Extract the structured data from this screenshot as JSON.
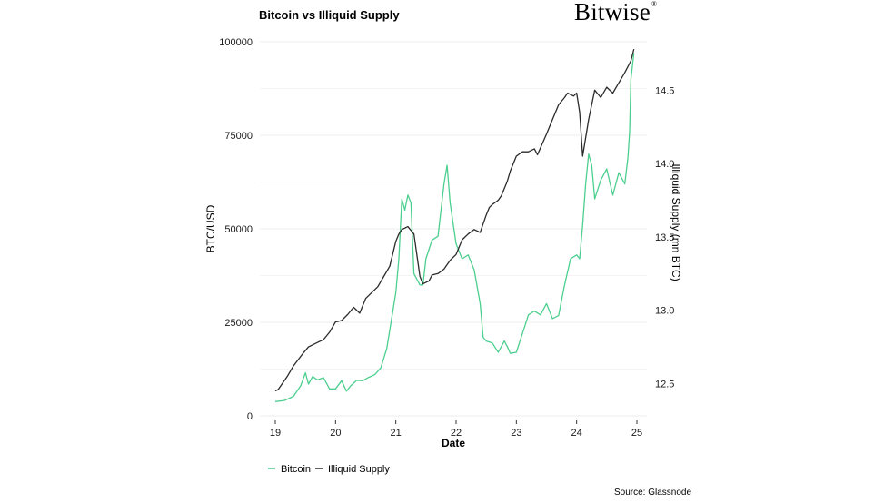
{
  "title": "Bitcoin vs Illiquid Supply",
  "brand": {
    "name": "Bitwise",
    "mark": "®"
  },
  "source": "Source: Glassnode",
  "chart_data": {
    "type": "line",
    "title": "Bitcoin vs Illiquid Supply",
    "xlabel": "Date",
    "ylabel_left": "BTC/USD",
    "ylabel_right": "Illiquid Supply (mn BTC)",
    "xlim": [
      19,
      25
    ],
    "x_ticks": [
      "19",
      "20",
      "21",
      "22",
      "23",
      "24",
      "25"
    ],
    "ylim_left": [
      0,
      100000
    ],
    "y_ticks_left": [
      "0",
      "25000",
      "50000",
      "75000",
      "100000"
    ],
    "ylim_right": [
      12.28,
      14.83
    ],
    "y_ticks_right": [
      "12.5",
      "13.0",
      "13.5",
      "14.0",
      "14.5"
    ],
    "grid": true,
    "legend_position": "bottom-left",
    "colors": {
      "bitcoin": "#4ccf8f",
      "illiquid": "#2b2b2b",
      "grid": "#ececec"
    },
    "series": [
      {
        "name": "Bitcoin",
        "axis": "left",
        "x": [
          19.0,
          19.15,
          19.3,
          19.42,
          19.5,
          19.55,
          19.62,
          19.7,
          19.8,
          19.9,
          20.0,
          20.1,
          20.18,
          20.25,
          20.35,
          20.45,
          20.55,
          20.65,
          20.75,
          20.85,
          20.92,
          21.0,
          21.05,
          21.1,
          21.15,
          21.2,
          21.25,
          21.3,
          21.4,
          21.45,
          21.5,
          21.6,
          21.7,
          21.8,
          21.85,
          21.9,
          22.0,
          22.1,
          22.2,
          22.3,
          22.4,
          22.45,
          22.5,
          22.6,
          22.7,
          22.8,
          22.85,
          22.9,
          23.0,
          23.1,
          23.2,
          23.3,
          23.4,
          23.5,
          23.6,
          23.7,
          23.8,
          23.9,
          24.0,
          24.05,
          24.1,
          24.15,
          24.2,
          24.25,
          24.3,
          24.4,
          24.5,
          24.6,
          24.7,
          24.8,
          24.85,
          24.88,
          24.9,
          24.95
        ],
        "values": [
          3800,
          4100,
          5200,
          8000,
          11500,
          8500,
          10500,
          9600,
          10200,
          7200,
          7200,
          9400,
          6600,
          8000,
          9500,
          9400,
          10300,
          11000,
          12800,
          18000,
          25000,
          33000,
          42000,
          58000,
          55000,
          59000,
          57000,
          38000,
          35000,
          35000,
          42000,
          47000,
          48000,
          62000,
          67000,
          57000,
          46000,
          42000,
          43000,
          39000,
          30000,
          21000,
          20000,
          19500,
          17000,
          20000,
          18500,
          16700,
          17000,
          22000,
          27000,
          28000,
          27000,
          30000,
          26000,
          26800,
          35000,
          42000,
          43000,
          42000,
          51000,
          62000,
          70000,
          67000,
          58000,
          63000,
          66000,
          59000,
          65000,
          62000,
          69000,
          76000,
          90000,
          97000
        ]
      },
      {
        "name": "Illiquid Supply",
        "axis": "right",
        "x": [
          19.0,
          19.05,
          19.2,
          19.3,
          19.45,
          19.55,
          19.7,
          19.8,
          19.9,
          20.0,
          20.1,
          20.2,
          20.3,
          20.4,
          20.5,
          20.6,
          20.7,
          20.8,
          20.9,
          21.0,
          21.05,
          21.1,
          21.2,
          21.3,
          21.4,
          21.45,
          21.55,
          21.6,
          21.7,
          21.8,
          21.9,
          22.0,
          22.1,
          22.2,
          22.3,
          22.4,
          22.5,
          22.55,
          22.6,
          22.7,
          22.75,
          22.85,
          22.9,
          23.0,
          23.1,
          23.2,
          23.3,
          23.35,
          23.5,
          23.6,
          23.7,
          23.8,
          23.85,
          23.95,
          24.0,
          24.05,
          24.1,
          24.2,
          24.3,
          24.4,
          24.5,
          24.6,
          24.7,
          24.8,
          24.9,
          24.95
        ],
        "values": [
          12.45,
          12.46,
          12.55,
          12.62,
          12.7,
          12.75,
          12.78,
          12.8,
          12.85,
          12.92,
          12.93,
          12.97,
          13.02,
          12.98,
          13.08,
          13.12,
          13.16,
          13.23,
          13.3,
          13.47,
          13.52,
          13.55,
          13.57,
          13.52,
          13.23,
          13.18,
          13.2,
          13.24,
          13.25,
          13.28,
          13.34,
          13.38,
          13.48,
          13.52,
          13.55,
          13.53,
          13.65,
          13.7,
          13.72,
          13.75,
          13.78,
          13.88,
          13.95,
          14.05,
          14.08,
          14.08,
          14.1,
          14.06,
          14.2,
          14.3,
          14.4,
          14.45,
          14.48,
          14.46,
          14.48,
          14.35,
          14.05,
          14.3,
          14.5,
          14.45,
          14.52,
          14.48,
          14.55,
          14.62,
          14.7,
          14.78
        ]
      }
    ]
  }
}
